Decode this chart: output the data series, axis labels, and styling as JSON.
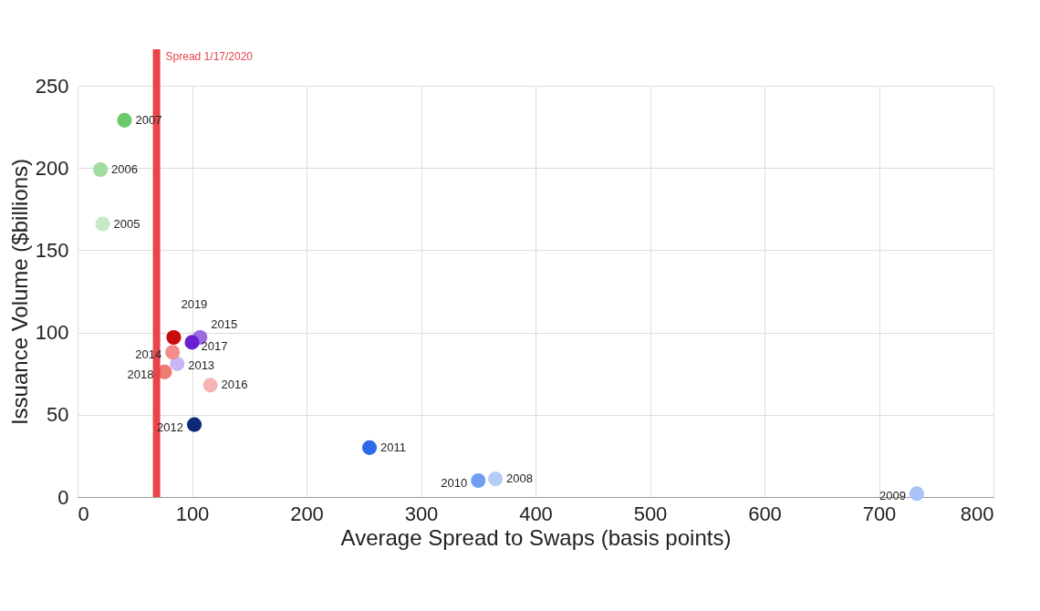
{
  "chart_data": {
    "type": "scatter",
    "xlabel": "Average Spread to Swaps (basis points)",
    "ylabel": "Issuance Volume ($billions)",
    "xlim": [
      0,
      800
    ],
    "xticks": [
      0,
      100,
      200,
      300,
      400,
      500,
      600,
      700,
      800
    ],
    "ylim": [
      0,
      250
    ],
    "yticks": [
      0,
      50,
      100,
      150,
      200,
      250
    ],
    "grid": true,
    "legend": false,
    "marker": "circle",
    "ref_lines": [
      {
        "axis": "x",
        "value": 69,
        "label": "Spread 1/17/2020",
        "color": "#e8444a"
      }
    ],
    "series": [
      {
        "name": "2005",
        "color": "#c8e8c8",
        "x": [
          22
        ],
        "values": [
          166
        ]
      },
      {
        "name": "2006",
        "color": "#a3dca0",
        "x": [
          20
        ],
        "values": [
          199
        ]
      },
      {
        "name": "2007",
        "color": "#6cc96c",
        "x": [
          41
        ],
        "values": [
          229
        ]
      },
      {
        "name": "2008",
        "color": "#b4cdf7",
        "x": [
          365
        ],
        "values": [
          11
        ]
      },
      {
        "name": "2009",
        "color": "#a9c4f8",
        "x": [
          733
        ],
        "values": [
          2
        ]
      },
      {
        "name": "2010",
        "color": "#6f9ef0",
        "x": [
          350
        ],
        "values": [
          10
        ]
      },
      {
        "name": "2011",
        "color": "#2d6ae8",
        "x": [
          255
        ],
        "values": [
          30
        ]
      },
      {
        "name": "2012",
        "color": "#0c2a78",
        "x": [
          102
        ],
        "values": [
          44
        ]
      },
      {
        "name": "2013",
        "color": "#c9b6f2",
        "x": [
          87
        ],
        "values": [
          81
        ]
      },
      {
        "name": "2014",
        "color": "#f48c8c",
        "x": [
          83
        ],
        "values": [
          88
        ]
      },
      {
        "name": "2015",
        "color": "#9b6be0",
        "x": [
          107
        ],
        "values": [
          97
        ]
      },
      {
        "name": "2016",
        "color": "#f7b4b4",
        "x": [
          116
        ],
        "values": [
          68
        ]
      },
      {
        "name": "2017",
        "color": "#6a1fd0",
        "x": [
          100
        ],
        "values": [
          94
        ]
      },
      {
        "name": "2018",
        "color": "#f07a70",
        "x": [
          76
        ],
        "values": [
          76
        ]
      },
      {
        "name": "2019",
        "color": "#c80c0c",
        "x": [
          84
        ],
        "values": [
          97
        ]
      }
    ]
  }
}
